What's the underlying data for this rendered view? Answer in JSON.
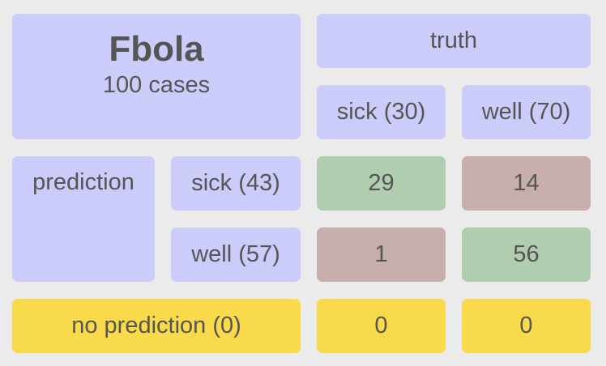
{
  "title": "Fbola",
  "subtitle": "100 cases",
  "truth_label": "truth",
  "prediction_label": "prediction",
  "columns": [
    "sick (30)",
    "well (70)"
  ],
  "rows": [
    {
      "label": "sick (43)",
      "values": [
        "29",
        "14"
      ]
    },
    {
      "label": "well (57)",
      "values": [
        "1",
        "56"
      ]
    }
  ],
  "no_prediction": {
    "label": "no prediction (0)",
    "values": [
      "0",
      "0"
    ]
  },
  "colors": {
    "header": "#ccccfa",
    "correct": "#b1cdb0",
    "incorrect": "#c7adab",
    "no_prediction": "#f9da4a",
    "background": "#ebebeb"
  }
}
